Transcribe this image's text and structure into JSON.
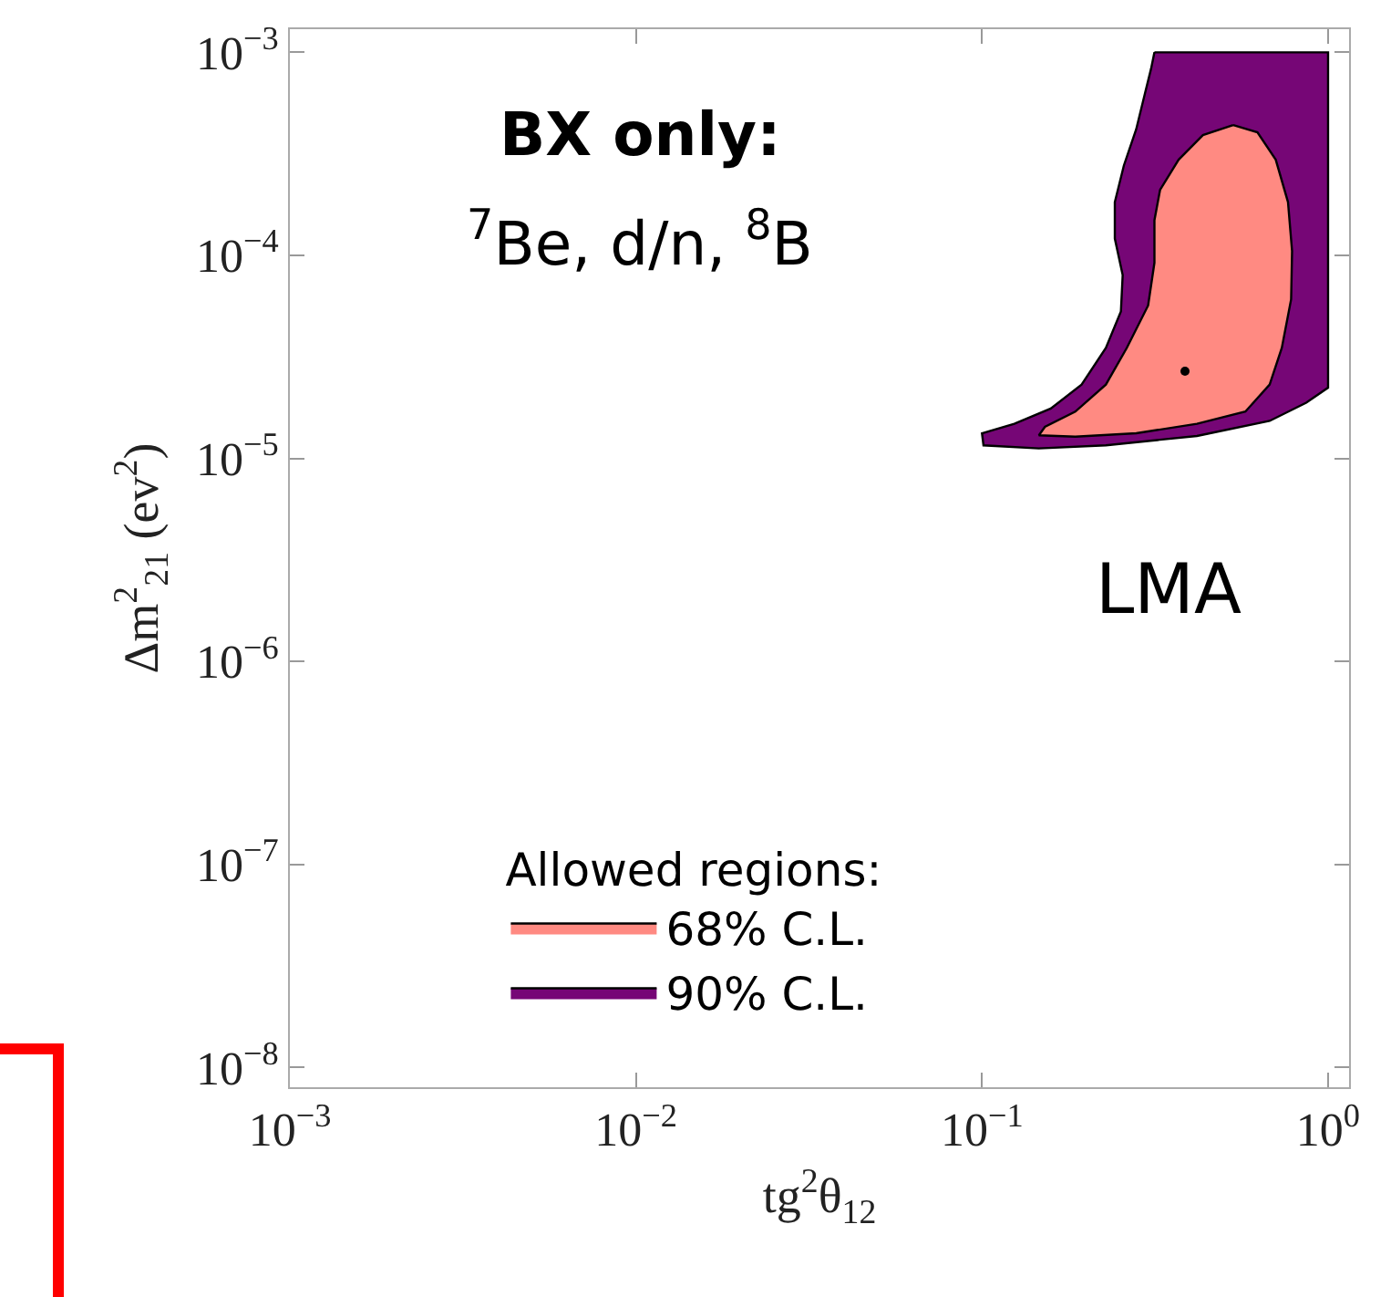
{
  "chart_data": {
    "type": "area",
    "annotations": [
      "BX only:",
      "$^{7}$Be, d/n, $^{8}$B",
      "LMA"
    ],
    "xlabel": "tg$^{2}$θ$_{12}$",
    "ylabel": "Δm$^{2}$$_{21}$ (ev$^{2}$)",
    "legend_title": "Allowed regions:",
    "legend": "bottom",
    "grid": false,
    "log": "xy",
    "xlim": [
      0.001,
      1.15
    ],
    "ylim": [
      8e-09,
      0.0013
    ],
    "xticks": [
      {
        "value": 0.001,
        "label": "10$^{−3}$"
      },
      {
        "value": 0.01,
        "label": "10$^{−2}$"
      },
      {
        "value": 0.1,
        "label": "10$^{−1}$"
      },
      {
        "value": 1,
        "label": "10$^{0}$"
      }
    ],
    "yticks": [
      {
        "value": 1e-08,
        "label": "10$^{−8}$"
      },
      {
        "value": 1e-07,
        "label": "10$^{−7}$"
      },
      {
        "value": 1e-06,
        "label": "10$^{−6}$"
      },
      {
        "value": 1e-05,
        "label": "10$^{−5}$"
      },
      {
        "value": 0.0001,
        "label": "10$^{−4}$"
      },
      {
        "value": 0.001,
        "label": "10$^{−3}$"
      }
    ],
    "series": [
      {
        "name": "90% C.L.",
        "color": "#760676",
        "x": [
          0.315,
          1.0,
          1.0,
          0.865,
          0.678,
          0.418,
          0.228,
          0.146,
          0.101,
          0.1,
          0.124,
          0.158,
          0.194,
          0.228,
          0.252,
          0.255,
          0.242,
          0.242,
          0.257,
          0.279,
          0.296,
          0.308,
          0.315
        ],
        "values": [
          0.001,
          0.001,
          2.23e-05,
          1.88e-05,
          1.53e-05,
          1.29e-05,
          1.16e-05,
          1.12e-05,
          1.16e-05,
          1.33e-05,
          1.48e-05,
          1.76e-05,
          2.31e-05,
          3.5e-05,
          5.29e-05,
          8e-05,
          0.000121,
          0.000183,
          0.000277,
          0.000418,
          0.000632,
          0.00083,
          0.001
        ]
      },
      {
        "name": "68% C.L.",
        "color": "#ff8a82",
        "x": [
          0.532,
          0.625,
          0.706,
          0.766,
          0.787,
          0.782,
          0.735,
          0.678,
          0.577,
          0.418,
          0.279,
          0.186,
          0.146,
          0.152,
          0.186,
          0.228,
          0.262,
          0.302,
          0.315,
          0.315,
          0.327,
          0.37,
          0.435,
          0.532
        ],
        "values": [
          0.000438,
          0.000404,
          0.000296,
          0.000183,
          0.000105,
          6.07e-05,
          3.5e-05,
          2.31e-05,
          1.7e-05,
          1.48e-05,
          1.33e-05,
          1.28e-05,
          1.3e-05,
          1.43e-05,
          1.7e-05,
          2.31e-05,
          3.5e-05,
          5.66e-05,
          9.2e-05,
          0.000149,
          0.00021,
          0.000296,
          0.000391,
          0.000438
        ]
      },
      {
        "type": "scatter",
        "marker": "circle",
        "color": "#000000",
        "x": [
          0.386
        ],
        "values": [
          2.69e-05
        ]
      }
    ]
  }
}
